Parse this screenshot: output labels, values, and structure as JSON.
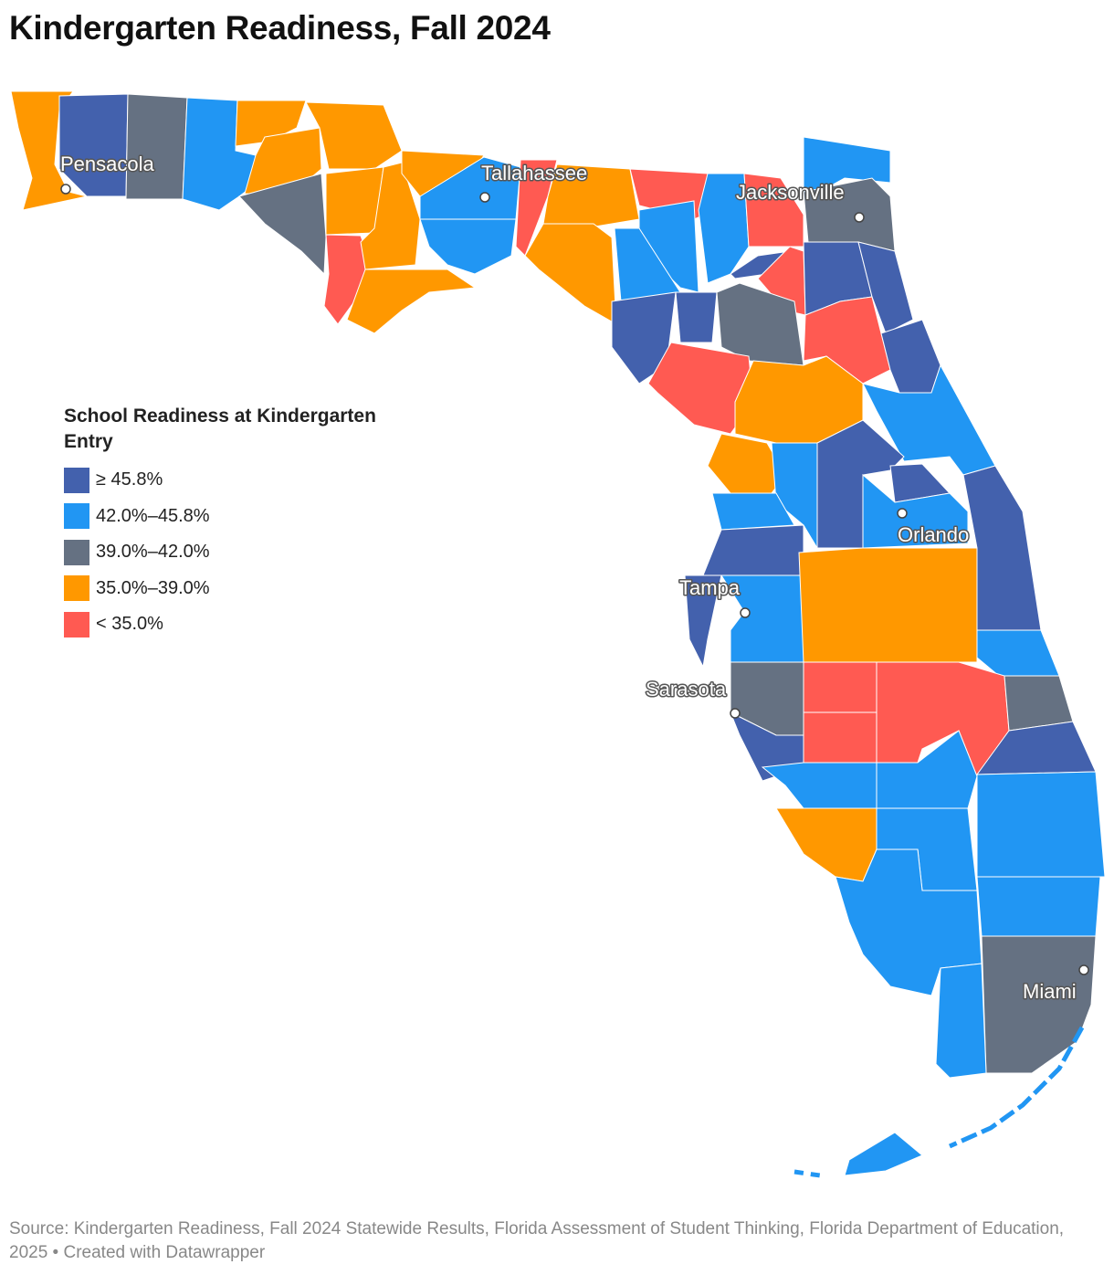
{
  "title": "Kindergarten Readiness, Fall 2024",
  "legend": {
    "title": "School Readiness at Kindergarten Entry",
    "items": [
      {
        "label": "≥ 45.8%",
        "color": "#4361ad"
      },
      {
        "label": "42.0%–45.8%",
        "color": "#2196f3"
      },
      {
        "label": "39.0%–42.0%",
        "color": "#657182"
      },
      {
        "label": "35.0%–39.0%",
        "color": "#ff9800"
      },
      {
        "label": "< 35.0%",
        "color": "#ff5a52"
      }
    ]
  },
  "cities": [
    {
      "name": "Pensacola"
    },
    {
      "name": "Tallahassee"
    },
    {
      "name": "Jacksonville"
    },
    {
      "name": "Orlando"
    },
    {
      "name": "Tampa"
    },
    {
      "name": "Sarasota"
    },
    {
      "name": "Miami"
    }
  ],
  "footer": "Source: Kindergarten Readiness, Fall 2024 Statewide Results, Florida Assessment of Student Thinking, Florida Department of Education, 2025 • Created with Datawrapper"
}
